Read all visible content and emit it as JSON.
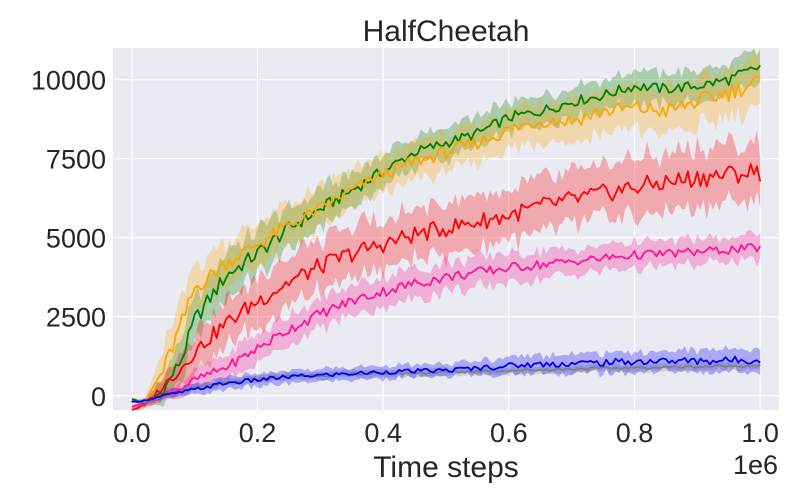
{
  "chart_data": {
    "type": "line",
    "title": "HalfCheetah",
    "xlabel": "Time steps",
    "ylabel": "",
    "x_offset_label": "1e6",
    "xlim": [
      -0.03,
      1.03
    ],
    "ylim": [
      -450,
      11000
    ],
    "x_ticks": [
      0.0,
      0.2,
      0.4,
      0.6,
      0.8,
      1.0
    ],
    "x_tick_labels": [
      "0.0",
      "0.2",
      "0.4",
      "0.6",
      "0.8",
      "1.0"
    ],
    "y_ticks": [
      0,
      2500,
      5000,
      7500,
      10000
    ],
    "y_tick_labels": [
      "0",
      "2500",
      "5000",
      "7500",
      "10000"
    ],
    "grid": true,
    "background": "#eaeaf2",
    "series": [
      {
        "color": "#008000",
        "x": [
          0.0,
          0.02,
          0.05,
          0.08,
          0.1,
          0.15,
          0.2,
          0.25,
          0.3,
          0.35,
          0.4,
          0.45,
          0.5,
          0.55,
          0.6,
          0.65,
          0.7,
          0.75,
          0.8,
          0.85,
          0.9,
          0.95,
          1.0
        ],
        "mean": [
          -100,
          -250,
          150,
          1200,
          2400,
          3800,
          4500,
          5300,
          5900,
          6500,
          7100,
          7700,
          8000,
          8300,
          8800,
          9000,
          9300,
          9500,
          9800,
          9700,
          9800,
          10000,
          10400
        ],
        "std": [
          60,
          120,
          500,
          800,
          900,
          900,
          850,
          800,
          750,
          700,
          650,
          600,
          600,
          600,
          600,
          600,
          600,
          600,
          600,
          600,
          600,
          650,
          650
        ]
      },
      {
        "color": "#ffa500",
        "x": [
          0.0,
          0.02,
          0.05,
          0.08,
          0.1,
          0.15,
          0.2,
          0.25,
          0.3,
          0.35,
          0.4,
          0.45,
          0.5,
          0.55,
          0.6,
          0.65,
          0.7,
          0.75,
          0.8,
          0.85,
          0.9,
          0.95,
          1.0
        ],
        "mean": [
          -150,
          -200,
          800,
          2300,
          3400,
          4200,
          4800,
          5400,
          5900,
          6500,
          7000,
          7400,
          7700,
          8000,
          8400,
          8700,
          8700,
          9000,
          9100,
          9000,
          9300,
          9600,
          9950
        ],
        "std": [
          60,
          120,
          900,
          1100,
          900,
          850,
          800,
          800,
          800,
          750,
          750,
          750,
          750,
          750,
          800,
          800,
          850,
          850,
          900,
          900,
          950,
          1000,
          1000
        ]
      },
      {
        "color": "#ff0000",
        "x": [
          0.0,
          0.02,
          0.05,
          0.08,
          0.1,
          0.15,
          0.2,
          0.25,
          0.3,
          0.35,
          0.4,
          0.45,
          0.5,
          0.55,
          0.6,
          0.65,
          0.7,
          0.75,
          0.8,
          0.85,
          0.9,
          0.95,
          1.0
        ],
        "mean": [
          -450,
          -300,
          300,
          900,
          1400,
          2300,
          3000,
          3600,
          4100,
          4500,
          4800,
          5100,
          5300,
          5500,
          5700,
          6000,
          6200,
          6400,
          6600,
          6750,
          6900,
          7000,
          7100
        ],
        "std": [
          60,
          150,
          500,
          700,
          800,
          900,
          1000,
          1000,
          1000,
          1000,
          1000,
          1000,
          1000,
          1000,
          1000,
          1000,
          1050,
          1050,
          1100,
          1100,
          1150,
          1150,
          1200
        ]
      },
      {
        "color": "#ff1493",
        "x": [
          0.0,
          0.02,
          0.05,
          0.08,
          0.1,
          0.15,
          0.2,
          0.25,
          0.3,
          0.35,
          0.4,
          0.45,
          0.5,
          0.55,
          0.6,
          0.65,
          0.7,
          0.75,
          0.8,
          0.85,
          0.9,
          0.95,
          1.0
        ],
        "mean": [
          -350,
          -250,
          0,
          250,
          500,
          900,
          1500,
          2100,
          2600,
          3000,
          3300,
          3550,
          3750,
          3900,
          4050,
          4150,
          4250,
          4350,
          4450,
          4500,
          4550,
          4620,
          4680
        ],
        "std": [
          60,
          100,
          200,
          300,
          400,
          500,
          600,
          600,
          600,
          600,
          600,
          600,
          600,
          600,
          550,
          550,
          500,
          500,
          500,
          500,
          500,
          500,
          500
        ]
      },
      {
        "color": "#808080",
        "x": [
          0.0,
          0.02,
          0.05,
          0.1,
          0.15,
          0.2,
          0.25,
          0.3,
          0.35,
          0.4,
          0.45,
          0.5,
          0.55,
          0.6,
          0.65,
          0.7,
          0.75,
          0.8,
          0.85,
          0.9,
          0.95,
          1.0
        ],
        "mean": [
          -150,
          -200,
          -50,
          250,
          400,
          550,
          620,
          650,
          700,
          700,
          720,
          750,
          780,
          800,
          820,
          850,
          870,
          880,
          900,
          920,
          940,
          950
        ],
        "std": [
          40,
          60,
          80,
          120,
          150,
          150,
          150,
          150,
          150,
          150,
          150,
          150,
          150,
          150,
          150,
          150,
          150,
          150,
          150,
          150,
          150,
          150
        ]
      },
      {
        "color": "#0000ff",
        "x": [
          0.0,
          0.02,
          0.05,
          0.1,
          0.15,
          0.2,
          0.25,
          0.3,
          0.35,
          0.4,
          0.45,
          0.5,
          0.55,
          0.6,
          0.65,
          0.7,
          0.75,
          0.8,
          0.85,
          0.9,
          0.95,
          1.0
        ],
        "mean": [
          -200,
          -150,
          0,
          200,
          400,
          500,
          600,
          650,
          700,
          750,
          780,
          800,
          880,
          950,
          1000,
          1020,
          1050,
          1080,
          1100,
          1100,
          1120,
          1150
        ],
        "std": [
          40,
          80,
          150,
          200,
          250,
          250,
          250,
          250,
          250,
          250,
          250,
          250,
          300,
          350,
          350,
          400,
          400,
          400,
          400,
          450,
          450,
          450
        ]
      }
    ]
  }
}
